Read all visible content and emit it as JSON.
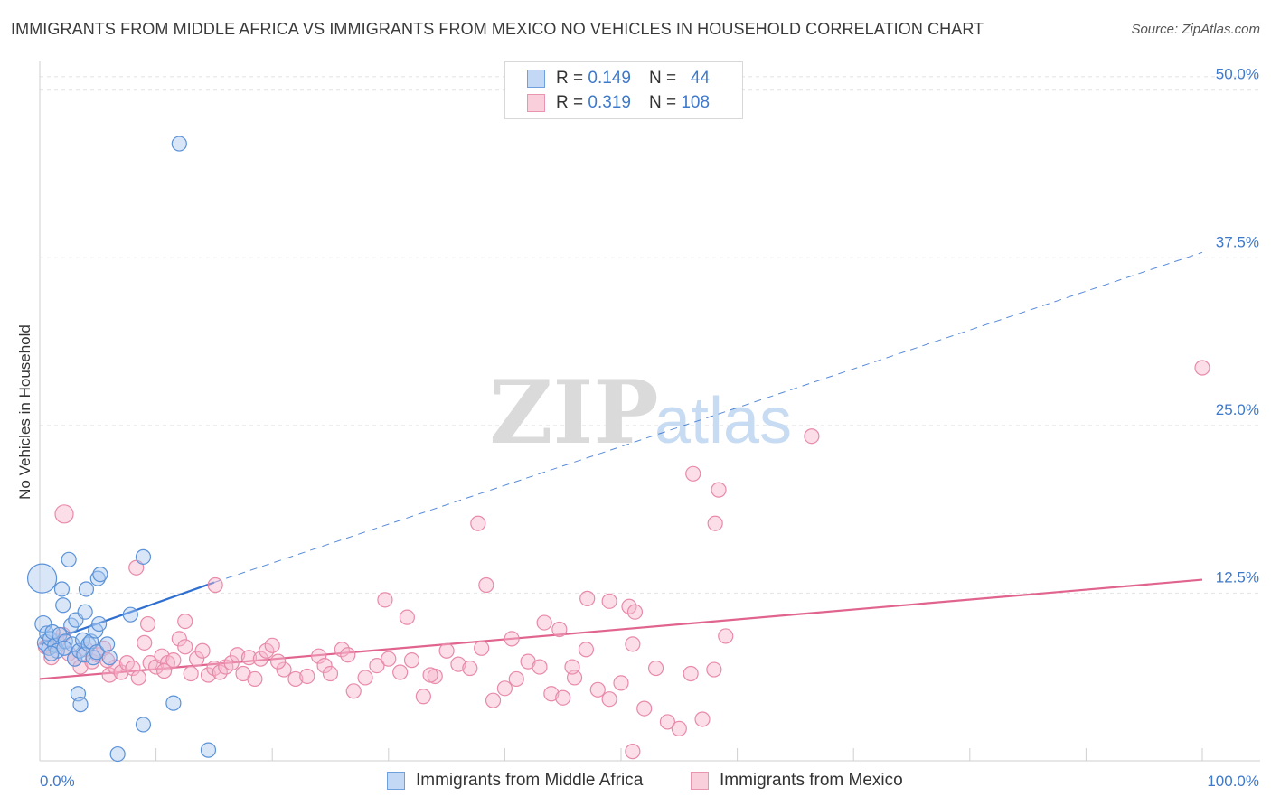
{
  "title": "IMMIGRANTS FROM MIDDLE AFRICA VS IMMIGRANTS FROM MEXICO NO VEHICLES IN HOUSEHOLD CORRELATION CHART",
  "source": "Source: ZipAtlas.com",
  "watermark": {
    "zip": "ZIP",
    "atlas": "atlas"
  },
  "legend": {
    "r_label": "R =",
    "n_label": "N =",
    "rows": [
      {
        "r": "0.149",
        "n": "44"
      },
      {
        "r": "0.319",
        "n": "108"
      }
    ]
  },
  "colors": {
    "blue_fill": "#a9c8f0",
    "blue_stroke": "#5b92d8",
    "blue_line": "#2f6fd0",
    "pink_fill": "#f6b6cb",
    "pink_stroke": "#e88aa8",
    "pink_line": "#e0648e",
    "tick_label": "#3f79c9",
    "grid": "#e2e2e2"
  },
  "chart_data": {
    "type": "scatter",
    "xlabel": "",
    "ylabel": "No Vehicles in Household",
    "xlim": [
      0,
      100
    ],
    "ylim": [
      0,
      52
    ],
    "x_tick_labels": [
      "0.0%",
      "100.0%"
    ],
    "y_ticks": [
      12.5,
      25.0,
      37.5,
      50.0
    ],
    "y_tick_labels": [
      "12.5%",
      "25.0%",
      "37.5%",
      "50.0%"
    ],
    "grid": true,
    "legend_position": "top-center",
    "series": [
      {
        "name": "Immigrants from Middle Africa",
        "color": "#5b92d8",
        "trend": {
          "x0": 0,
          "y0": 8.7,
          "x1": 15,
          "y1": 13.3,
          "dashed_to_x": 100,
          "dashed_to_y": 37.9
        },
        "points": [
          [
            0.2,
            13.6,
            16
          ],
          [
            0.3,
            10.2,
            9
          ],
          [
            0.5,
            8.8,
            9
          ],
          [
            0.6,
            9.5,
            8
          ],
          [
            0.8,
            8.4,
            8
          ],
          [
            0.9,
            9.1,
            8
          ],
          [
            1.1,
            9.6,
            8
          ],
          [
            1.3,
            8.6,
            8
          ],
          [
            1.5,
            8.2,
            8
          ],
          [
            1.7,
            9.4,
            8
          ],
          [
            1.9,
            12.8,
            8
          ],
          [
            2.0,
            11.6,
            8
          ],
          [
            2.2,
            8.9,
            8
          ],
          [
            2.5,
            15.0,
            8
          ],
          [
            2.7,
            10.1,
            8
          ],
          [
            2.8,
            8.7,
            8
          ],
          [
            3.0,
            7.6,
            8
          ],
          [
            3.1,
            10.5,
            8
          ],
          [
            3.3,
            5.0,
            8
          ],
          [
            3.4,
            8.2,
            8
          ],
          [
            3.5,
            4.2,
            8
          ],
          [
            3.7,
            9.0,
            8
          ],
          [
            3.8,
            7.9,
            8
          ],
          [
            3.9,
            11.1,
            8
          ],
          [
            4.0,
            12.8,
            8
          ],
          [
            4.2,
            8.7,
            8
          ],
          [
            4.4,
            8.9,
            8
          ],
          [
            4.6,
            7.7,
            8
          ],
          [
            4.8,
            9.7,
            8
          ],
          [
            4.9,
            8.1,
            8
          ],
          [
            5.0,
            13.6,
            8
          ],
          [
            5.1,
            10.2,
            8
          ],
          [
            5.2,
            13.9,
            8
          ],
          [
            5.8,
            8.7,
            8
          ],
          [
            6.7,
            0.5,
            8
          ],
          [
            7.8,
            10.9,
            8
          ],
          [
            8.9,
            2.7,
            8
          ],
          [
            8.9,
            15.2,
            8
          ],
          [
            11.5,
            4.3,
            8
          ],
          [
            12.0,
            46.0,
            8
          ],
          [
            14.5,
            0.8,
            8
          ],
          [
            1.0,
            8.0,
            8
          ],
          [
            2.1,
            8.4,
            8
          ],
          [
            6.0,
            7.7,
            8
          ]
        ]
      },
      {
        "name": "Immigrants from Mexico",
        "color": "#e88aa8",
        "trend": {
          "x0": 0,
          "y0": 6.1,
          "x1": 100,
          "y1": 13.5
        },
        "points": [
          [
            0.5,
            8.5,
            8
          ],
          [
            1.0,
            7.7,
            8
          ],
          [
            1.5,
            8.9,
            8
          ],
          [
            2.0,
            9.4,
            8
          ],
          [
            2.5,
            8.0,
            8
          ],
          [
            3.0,
            7.6,
            8
          ],
          [
            3.5,
            7.0,
            8
          ],
          [
            4.0,
            8.3,
            8
          ],
          [
            4.5,
            7.4,
            8
          ],
          [
            5.0,
            7.9,
            8
          ],
          [
            5.5,
            8.4,
            8
          ],
          [
            6.0,
            6.4,
            8
          ],
          [
            6.5,
            7.0,
            8
          ],
          [
            7.0,
            6.6,
            8
          ],
          [
            7.5,
            7.3,
            8
          ],
          [
            8.0,
            6.9,
            8
          ],
          [
            8.5,
            6.2,
            8
          ],
          [
            9.0,
            8.8,
            8
          ],
          [
            9.5,
            7.3,
            8
          ],
          [
            10.0,
            7.0,
            8
          ],
          [
            10.5,
            7.8,
            8
          ],
          [
            11.0,
            7.3,
            8
          ],
          [
            11.5,
            7.5,
            8
          ],
          [
            12.0,
            9.1,
            8
          ],
          [
            12.5,
            8.5,
            8
          ],
          [
            13.0,
            6.5,
            8
          ],
          [
            13.5,
            7.6,
            8
          ],
          [
            14.0,
            8.2,
            8
          ],
          [
            14.5,
            6.4,
            8
          ],
          [
            15.0,
            6.9,
            8
          ],
          [
            15.5,
            6.6,
            8
          ],
          [
            16.0,
            7.0,
            8
          ],
          [
            16.5,
            7.3,
            8
          ],
          [
            17.0,
            7.9,
            8
          ],
          [
            17.5,
            6.5,
            8
          ],
          [
            18.0,
            7.7,
            8
          ],
          [
            18.5,
            6.1,
            8
          ],
          [
            19.0,
            7.6,
            8
          ],
          [
            19.5,
            8.2,
            8
          ],
          [
            20.0,
            8.6,
            8
          ],
          [
            21.0,
            6.8,
            8
          ],
          [
            22.0,
            6.1,
            8
          ],
          [
            23.0,
            6.3,
            8
          ],
          [
            24.0,
            7.8,
            8
          ],
          [
            24.5,
            7.1,
            8
          ],
          [
            25.0,
            6.5,
            8
          ],
          [
            26.0,
            8.3,
            8
          ],
          [
            27.0,
            5.2,
            8
          ],
          [
            28.0,
            6.2,
            8
          ],
          [
            29.0,
            7.1,
            8
          ],
          [
            30.0,
            7.6,
            8
          ],
          [
            31.0,
            6.6,
            8
          ],
          [
            32.0,
            7.5,
            8
          ],
          [
            33.0,
            4.8,
            8
          ],
          [
            34.0,
            6.3,
            8
          ],
          [
            35.0,
            8.2,
            8
          ],
          [
            36.0,
            7.2,
            8
          ],
          [
            37.0,
            6.9,
            8
          ],
          [
            38.0,
            8.4,
            8
          ],
          [
            39.0,
            4.5,
            8
          ],
          [
            40.0,
            5.4,
            8
          ],
          [
            41.0,
            6.1,
            8
          ],
          [
            42.0,
            7.4,
            8
          ],
          [
            43.0,
            7.0,
            8
          ],
          [
            44.0,
            5.0,
            8
          ],
          [
            45.0,
            4.7,
            8
          ],
          [
            46.0,
            6.2,
            8
          ],
          [
            47.0,
            8.3,
            8
          ],
          [
            48.0,
            5.3,
            8
          ],
          [
            49.0,
            4.6,
            8
          ],
          [
            50.0,
            5.8,
            8
          ],
          [
            51.0,
            8.7,
            8
          ],
          [
            52.0,
            3.9,
            8
          ],
          [
            53.0,
            6.9,
            8
          ],
          [
            54.0,
            2.9,
            8
          ],
          [
            55.0,
            2.4,
            8
          ],
          [
            56.0,
            6.5,
            8
          ],
          [
            57.0,
            3.1,
            8
          ],
          [
            58.0,
            6.8,
            8
          ],
          [
            59.0,
            9.3,
            8
          ],
          [
            2.1,
            18.4,
            10
          ],
          [
            8.3,
            14.4,
            8
          ],
          [
            9.3,
            10.2,
            8
          ],
          [
            12.5,
            10.4,
            8
          ],
          [
            15.1,
            13.1,
            8
          ],
          [
            29.7,
            12.0,
            8
          ],
          [
            31.6,
            10.7,
            8
          ],
          [
            37.7,
            17.7,
            8
          ],
          [
            38.4,
            13.1,
            8
          ],
          [
            43.4,
            10.3,
            8
          ],
          [
            44.7,
            9.8,
            8
          ],
          [
            47.1,
            12.1,
            8
          ],
          [
            49.0,
            11.9,
            8
          ],
          [
            50.7,
            11.5,
            8
          ],
          [
            51.2,
            11.1,
            8
          ],
          [
            56.2,
            21.4,
            8
          ],
          [
            58.1,
            17.7,
            8
          ],
          [
            58.4,
            20.2,
            8
          ],
          [
            66.4,
            24.2,
            8
          ],
          [
            100.0,
            29.3,
            8
          ],
          [
            5.8,
            7.5,
            8
          ],
          [
            10.7,
            6.7,
            8
          ],
          [
            20.5,
            7.4,
            8
          ],
          [
            26.5,
            7.9,
            8
          ],
          [
            33.6,
            6.4,
            8
          ],
          [
            40.6,
            9.1,
            8
          ],
          [
            45.8,
            7.0,
            8
          ],
          [
            51.0,
            0.7,
            8
          ]
        ]
      }
    ]
  },
  "bottom_legend": [
    "Immigrants from Middle Africa",
    "Immigrants from Mexico"
  ]
}
